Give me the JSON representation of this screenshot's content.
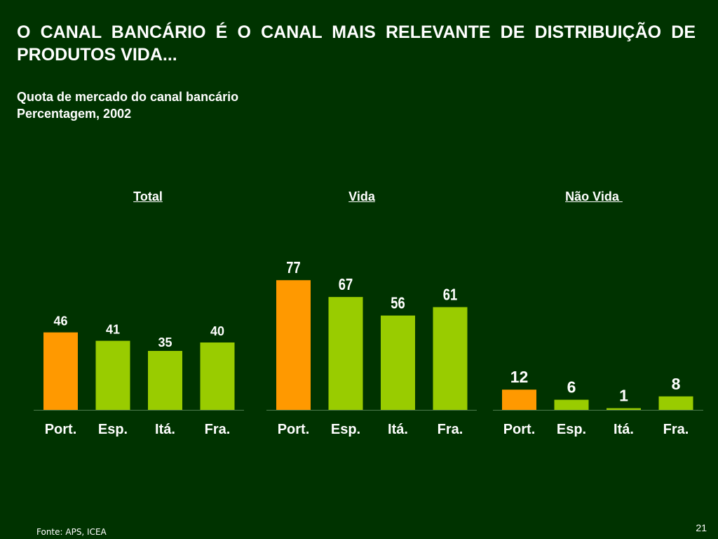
{
  "title": "O CANAL BANCÁRIO É O CANAL MAIS RELEVANTE DE DISTRIBUIÇÃO DE PRODUTOS VIDA...",
  "subtitle_line1": "Quota de mercado do canal bancário",
  "subtitle_line2": "Percentagem, 2002",
  "source": "Fonte: APS, ICEA",
  "page_number": "21",
  "colors": {
    "background": "#003300",
    "highlight": "#ff9900",
    "bar": "#99cc00",
    "baseline": "#4d7a4d"
  },
  "chart_data": [
    {
      "type": "bar",
      "title": "Total",
      "categories": [
        "Port.",
        "Esp.",
        "Itá.",
        "Fra."
      ],
      "values": [
        46,
        41,
        35,
        40
      ],
      "ylim": [
        0,
        100
      ],
      "highlight_index": 0,
      "grid": false
    },
    {
      "type": "bar",
      "title": "Vida",
      "categories": [
        "Port.",
        "Esp.",
        "Itá.",
        "Fra."
      ],
      "values": [
        77,
        67,
        56,
        61
      ],
      "ylim": [
        0,
        100
      ],
      "highlight_index": 0,
      "grid": false
    },
    {
      "type": "bar",
      "title": "Não Vida ",
      "categories": [
        "Port.",
        "Esp.",
        "Itá.",
        "Fra."
      ],
      "values": [
        12,
        6,
        1,
        8
      ],
      "ylim": [
        0,
        100
      ],
      "highlight_index": 0,
      "grid": false
    }
  ]
}
